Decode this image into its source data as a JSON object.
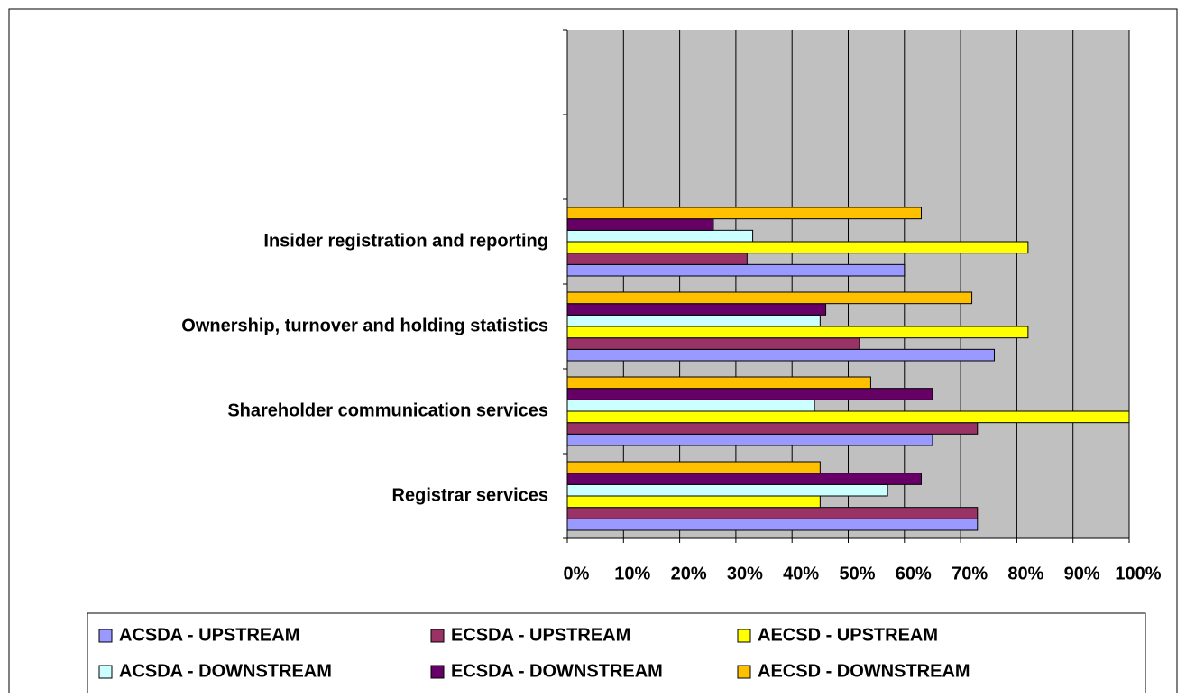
{
  "chart_data": {
    "type": "bar",
    "orientation": "horizontal",
    "categories": [
      "Registrar services",
      "Shareholder communication services",
      "Ownership, turnover and holding statistics",
      "Insider registration and reporting",
      null,
      null
    ],
    "series": [
      {
        "name": "ACSDA - UPSTREAM",
        "color": "#9999ff",
        "values": [
          73,
          65,
          76,
          60,
          null,
          null
        ]
      },
      {
        "name": "ECSDA - UPSTREAM",
        "color": "#993366",
        "values": [
          73,
          73,
          52,
          32,
          null,
          null
        ]
      },
      {
        "name": "AECSD - UPSTREAM",
        "color": "#ffff00",
        "values": [
          45,
          100,
          82,
          82,
          null,
          null
        ]
      },
      {
        "name": "ACSDA - DOWNSTREAM",
        "color": "#ccffff",
        "values": [
          57,
          44,
          45,
          33,
          null,
          null
        ]
      },
      {
        "name": "ECSDA - DOWNSTREAM",
        "color": "#660066",
        "values": [
          63,
          65,
          46,
          26,
          null,
          null
        ]
      },
      {
        "name": "AECSD - DOWNSTREAM",
        "color": "#ffc000",
        "values": [
          45,
          54,
          72,
          63,
          null,
          null
        ]
      }
    ],
    "xlim": [
      0,
      100
    ],
    "xticks": [
      {
        "value": 0,
        "label": "0%"
      },
      {
        "value": 10,
        "label": "10%"
      },
      {
        "value": 20,
        "label": "20%"
      },
      {
        "value": 30,
        "label": "30%"
      },
      {
        "value": 40,
        "label": "40%"
      },
      {
        "value": 50,
        "label": "50%"
      },
      {
        "value": 60,
        "label": "60%"
      },
      {
        "value": 70,
        "label": "70%"
      },
      {
        "value": 80,
        "label": "80%"
      },
      {
        "value": 90,
        "label": "90%"
      },
      {
        "value": 100,
        "label": "100%"
      }
    ],
    "grid": true,
    "legend": "bottom"
  }
}
